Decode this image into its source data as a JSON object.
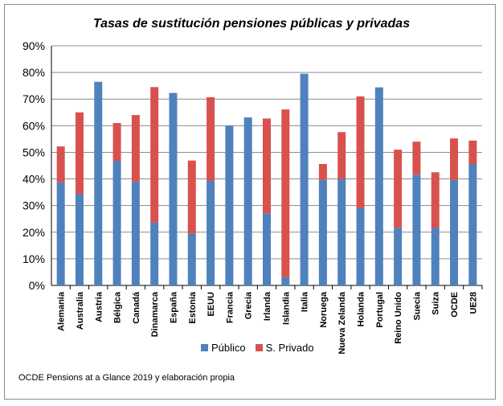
{
  "title": "Tasas de sustitución pensiones públicas y privadas",
  "source_note": "OCDE Pensions at a Glance 2019 y elaboración propia",
  "colors": {
    "publico": "#4f81bd",
    "privado": "#d9514e",
    "grid": "#8c8c8c"
  },
  "chart_data": {
    "type": "bar",
    "stacked": true,
    "title": "Tasas de sustitución pensiones públicas y privadas",
    "xlabel": "",
    "ylabel": "",
    "ylim": [
      0,
      90
    ],
    "y_ticks": [
      "0%",
      "10%",
      "20%",
      "30%",
      "40%",
      "50%",
      "60%",
      "70%",
      "80%",
      "90%"
    ],
    "y_tick_values": [
      0,
      10,
      20,
      30,
      40,
      50,
      60,
      70,
      80,
      90
    ],
    "grid": true,
    "legend_position": "bottom",
    "categories": [
      "Alemania",
      "Australia",
      "Austria",
      "Bélgica",
      "Canadá",
      "Dinamarca",
      "España",
      "Estonia",
      "EEUU",
      "Francia",
      "Grecia",
      "Irlanda",
      "Islandia",
      "Italia",
      "Noruega",
      "Nueva Zelanda",
      "Holanda",
      "Portugal",
      "Reino Unido",
      "Suecia",
      "Suiza",
      "OCDE",
      "UE28"
    ],
    "series": [
      {
        "name": "Público",
        "color": "#4f81bd",
        "values": [
          38.7,
          34.3,
          76.5,
          46.8,
          39.0,
          23.6,
          72.3,
          19.5,
          39.4,
          60.1,
          63.1,
          27.1,
          3.1,
          79.5,
          39.6,
          40.0,
          29.0,
          74.4,
          21.7,
          41.6,
          21.6,
          39.6,
          45.6
        ]
      },
      {
        "name": "S. Privado",
        "color": "#d9514e",
        "values": [
          13.5,
          30.7,
          0,
          14.2,
          25.0,
          50.9,
          0,
          27.4,
          31.3,
          0,
          0,
          35.6,
          63.0,
          0,
          6.0,
          17.6,
          42.0,
          0,
          29.3,
          12.4,
          20.9,
          15.6,
          8.8
        ]
      }
    ]
  }
}
